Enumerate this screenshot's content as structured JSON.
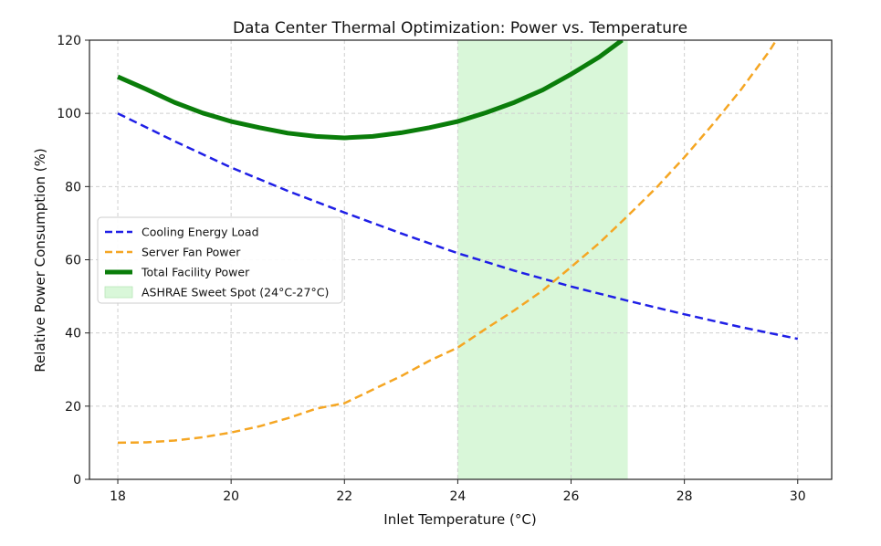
{
  "chart_data": {
    "type": "line",
    "title": "Data Center Thermal Optimization: Power vs. Temperature",
    "xlabel": "Inlet Temperature (°C)",
    "ylabel": "Relative Power Consumption (%)",
    "xlim": [
      17.5,
      30.6
    ],
    "ylim": [
      0,
      120
    ],
    "x_ticks": [
      18,
      20,
      22,
      24,
      26,
      28,
      30
    ],
    "y_ticks": [
      0,
      20,
      40,
      60,
      80,
      100,
      120
    ],
    "grid": true,
    "legend_position": "center-left",
    "shaded_region": {
      "label": "ASHRAE Sweet Spot (24°C-27°C)",
      "x_range": [
        24,
        27
      ],
      "color": "#d9f7d9"
    },
    "series": [
      {
        "name": "Cooling Energy Load",
        "color": "#1f1fe6",
        "style": "dashed",
        "width": 2.5,
        "points": [
          [
            18,
            100
          ],
          [
            19,
            92.4
          ],
          [
            20,
            85.2
          ],
          [
            21,
            78.8
          ],
          [
            22,
            72.9
          ],
          [
            23,
            67.2
          ],
          [
            24,
            61.8
          ],
          [
            25,
            57.0
          ],
          [
            26,
            52.7
          ],
          [
            27,
            48.8
          ],
          [
            28,
            45.1
          ],
          [
            29,
            41.6
          ],
          [
            30,
            38.4
          ]
        ]
      },
      {
        "name": "Server Fan Power",
        "color": "#f5a623",
        "style": "dashed",
        "width": 2.5,
        "points": [
          [
            18,
            10
          ],
          [
            18.5,
            10.1
          ],
          [
            19,
            10.6
          ],
          [
            19.5,
            11.5
          ],
          [
            20,
            12.8
          ],
          [
            20.5,
            14.5
          ],
          [
            21,
            16.7
          ],
          [
            21.5,
            19.3
          ],
          [
            22,
            20.8
          ],
          [
            22.5,
            24.5
          ],
          [
            23,
            28.2
          ],
          [
            23.5,
            32.4
          ],
          [
            24,
            36.0
          ],
          [
            24.5,
            41.2
          ],
          [
            25,
            46.2
          ],
          [
            25.5,
            51.6
          ],
          [
            26,
            58.0
          ],
          [
            26.5,
            64.6
          ],
          [
            27,
            72.0
          ],
          [
            27.5,
            79.6
          ],
          [
            28,
            88.0
          ],
          [
            28.5,
            97.0
          ],
          [
            29,
            106.5
          ],
          [
            29.5,
            117.0
          ],
          [
            29.62,
            120
          ]
        ]
      },
      {
        "name": "Total Facility Power",
        "color": "#0a7d0a",
        "style": "solid",
        "width": 5,
        "points": [
          [
            18,
            110
          ],
          [
            18.5,
            106.6
          ],
          [
            19,
            103.0
          ],
          [
            19.5,
            100.1
          ],
          [
            20,
            97.8
          ],
          [
            20.5,
            96.1
          ],
          [
            21,
            94.6
          ],
          [
            21.5,
            93.7
          ],
          [
            22,
            93.3
          ],
          [
            22.5,
            93.7
          ],
          [
            23,
            94.7
          ],
          [
            23.5,
            96.1
          ],
          [
            24,
            97.8
          ],
          [
            24.5,
            100.2
          ],
          [
            25,
            103.0
          ],
          [
            25.5,
            106.4
          ],
          [
            26,
            110.7
          ],
          [
            26.5,
            115.4
          ],
          [
            26.9,
            120
          ]
        ]
      }
    ]
  }
}
